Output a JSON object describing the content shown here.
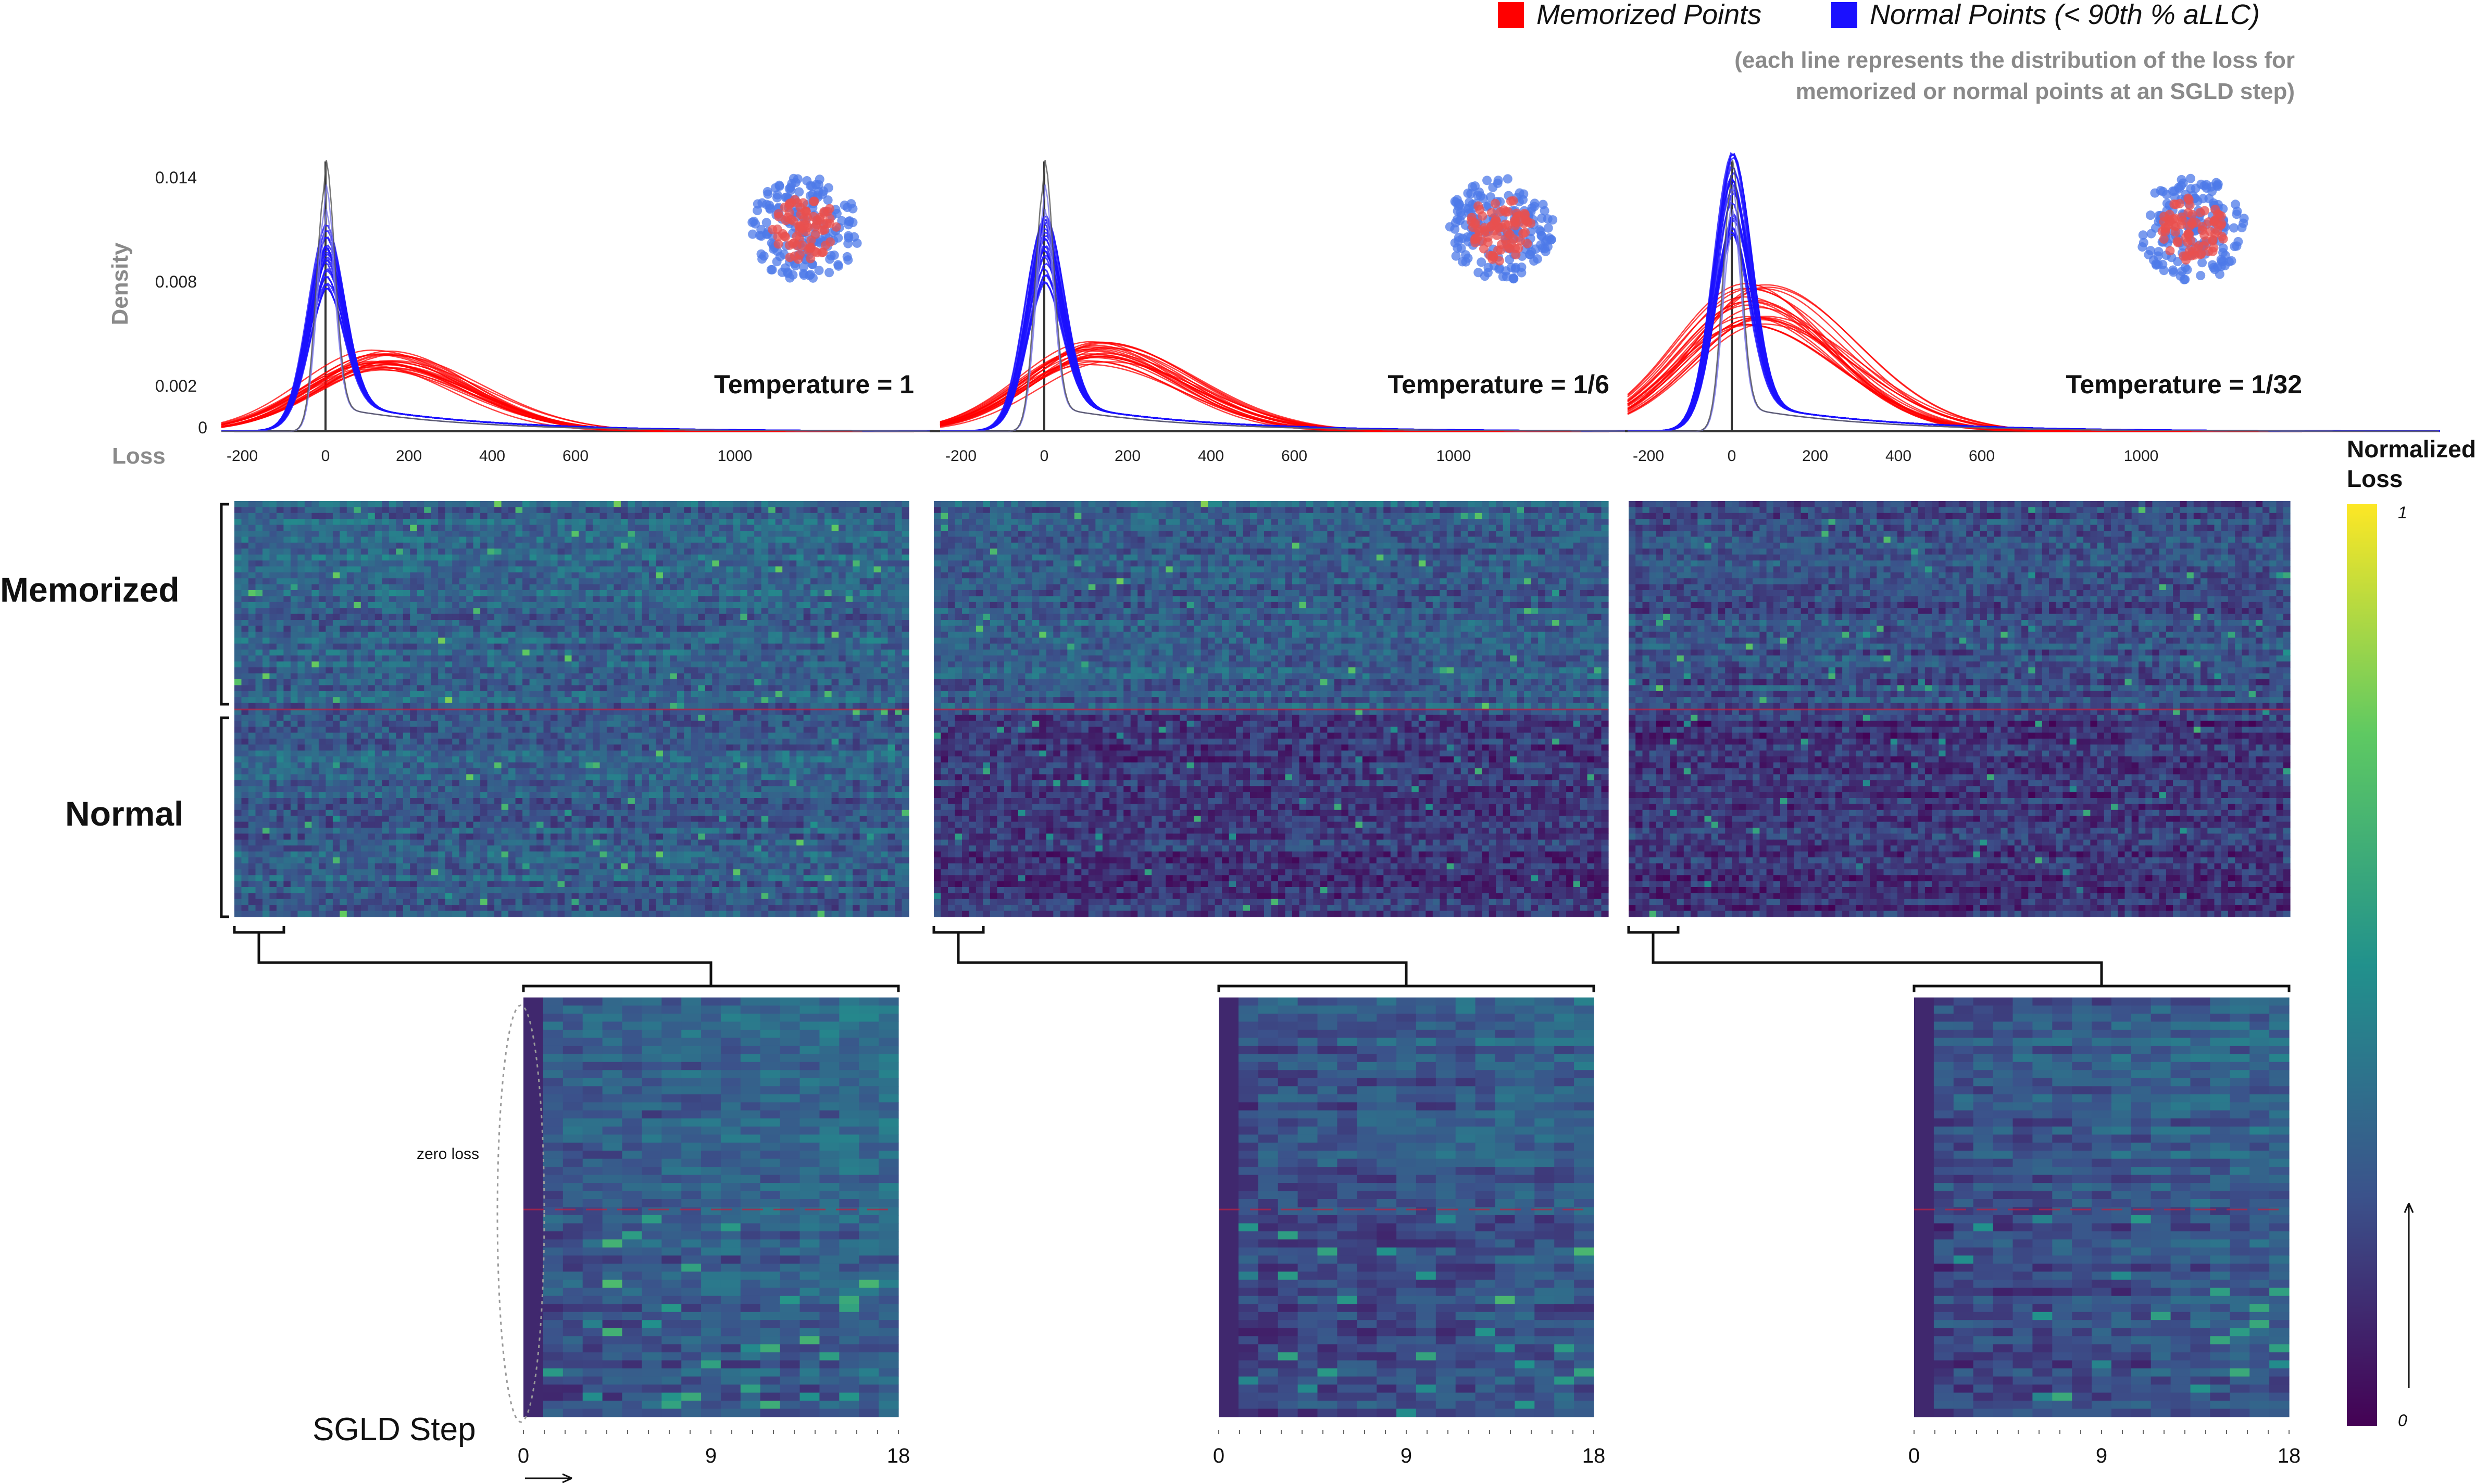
{
  "legend": {
    "memorized_label": "Memorized Points",
    "normal_label": "Normal Points (< 90th % aLLC)",
    "memorized_color": "#ff0000",
    "normal_color": "#1a10ff",
    "note_line1": "(each line represents the distribution of the loss for",
    "note_line2": "memorized or normal points at an SGLD step)"
  },
  "colorbar": {
    "title_line1": "Normalized",
    "title_line2": "Loss",
    "max_label": "1",
    "min_label": "0",
    "colormap": [
      "#440154",
      "#3b528b",
      "#21918c",
      "#5ec962",
      "#fde725"
    ]
  },
  "row_labels": {
    "memorized": "Memorized",
    "normal": "Normal"
  },
  "annotations": {
    "zero_loss": "zero loss",
    "sgld_step": "SGLD Step"
  },
  "density_axis": {
    "ylabel": "Density",
    "xlabel": "Loss",
    "yticks": [
      "0.014",
      "0.008",
      "0.002",
      "0"
    ],
    "xticks": [
      "-200",
      "0",
      "200",
      "400",
      "600",
      "1000"
    ]
  },
  "chart_data": [
    {
      "type": "line",
      "title": "Temperature = 1",
      "x_range": [
        -250,
        1750
      ],
      "ylim": [
        0,
        0.016
      ],
      "series": [
        {
          "name": "Memorized Points",
          "color": "#ff0000",
          "mode": 130,
          "peak_density": 0.0042
        },
        {
          "name": "Normal Points (< 90th % aLLC)",
          "color": "#1a10ff",
          "mode": 0,
          "peak_density": 0.0085,
          "max_line_peak": 0.0145
        }
      ]
    },
    {
      "type": "line",
      "title": "Temperature = 1/6",
      "x_range": [
        -250,
        1750
      ],
      "ylim": [
        0,
        0.016
      ],
      "series": [
        {
          "name": "Memorized Points",
          "color": "#ff0000",
          "mode": 130,
          "peak_density": 0.0045
        },
        {
          "name": "Normal Points (< 90th % aLLC)",
          "color": "#1a10ff",
          "mode": 0,
          "peak_density": 0.009,
          "max_line_peak": 0.0145
        }
      ]
    },
    {
      "type": "line",
      "title": "Temperature = 1/32",
      "x_range": [
        -250,
        1750
      ],
      "ylim": [
        0,
        0.016
      ],
      "series": [
        {
          "name": "Memorized Points",
          "color": "#ff0000",
          "mode": 60,
          "peak_density": 0.0075
        },
        {
          "name": "Normal Points (< 90th % aLLC)",
          "color": "#1a10ff",
          "mode": 0,
          "peak_density": 0.012,
          "max_line_peak": 0.0145
        }
      ]
    },
    {
      "type": "heatmap",
      "title": "Temperature = 1",
      "rows": [
        "Memorized",
        "Normal"
      ],
      "zoom_xticks": [
        "0",
        "9",
        "18"
      ],
      "value_range": [
        0,
        1
      ]
    },
    {
      "type": "heatmap",
      "title": "Temperature = 1/6",
      "rows": [
        "Memorized",
        "Normal"
      ],
      "zoom_xticks": [
        "0",
        "9",
        "18"
      ],
      "value_range": [
        0,
        1
      ]
    },
    {
      "type": "heatmap",
      "title": "Temperature = 1/32",
      "rows": [
        "Memorized",
        "Normal"
      ],
      "zoom_xticks": [
        "0",
        "9",
        "18"
      ],
      "value_range": [
        0,
        1
      ]
    }
  ]
}
